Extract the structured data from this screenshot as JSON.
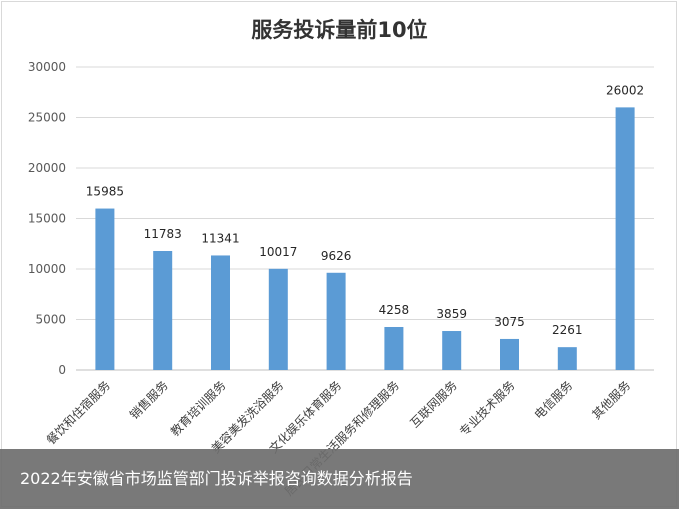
{
  "chart_data": {
    "type": "bar",
    "title": "服务投诉量前10位",
    "categories": [
      "餐饮和住宿服务",
      "销售服务",
      "教育培训服务",
      "美容美发洗浴服务",
      "文化娱乐体育服务",
      "居民日常生活服务和修理服务",
      "互联网服务",
      "专业技术服务",
      "电信服务",
      "其他服务"
    ],
    "values": [
      15985,
      11783,
      11341,
      10017,
      9626,
      4258,
      3859,
      3075,
      2261,
      26002
    ],
    "ylim": [
      0,
      30000
    ],
    "yticks": [
      0,
      5000,
      10000,
      15000,
      20000,
      25000,
      30000
    ],
    "grid": true,
    "bar_color": "#5b9bd5"
  },
  "caption": "2022年安徽省市场监管部门投诉举报咨询数据分析报告"
}
